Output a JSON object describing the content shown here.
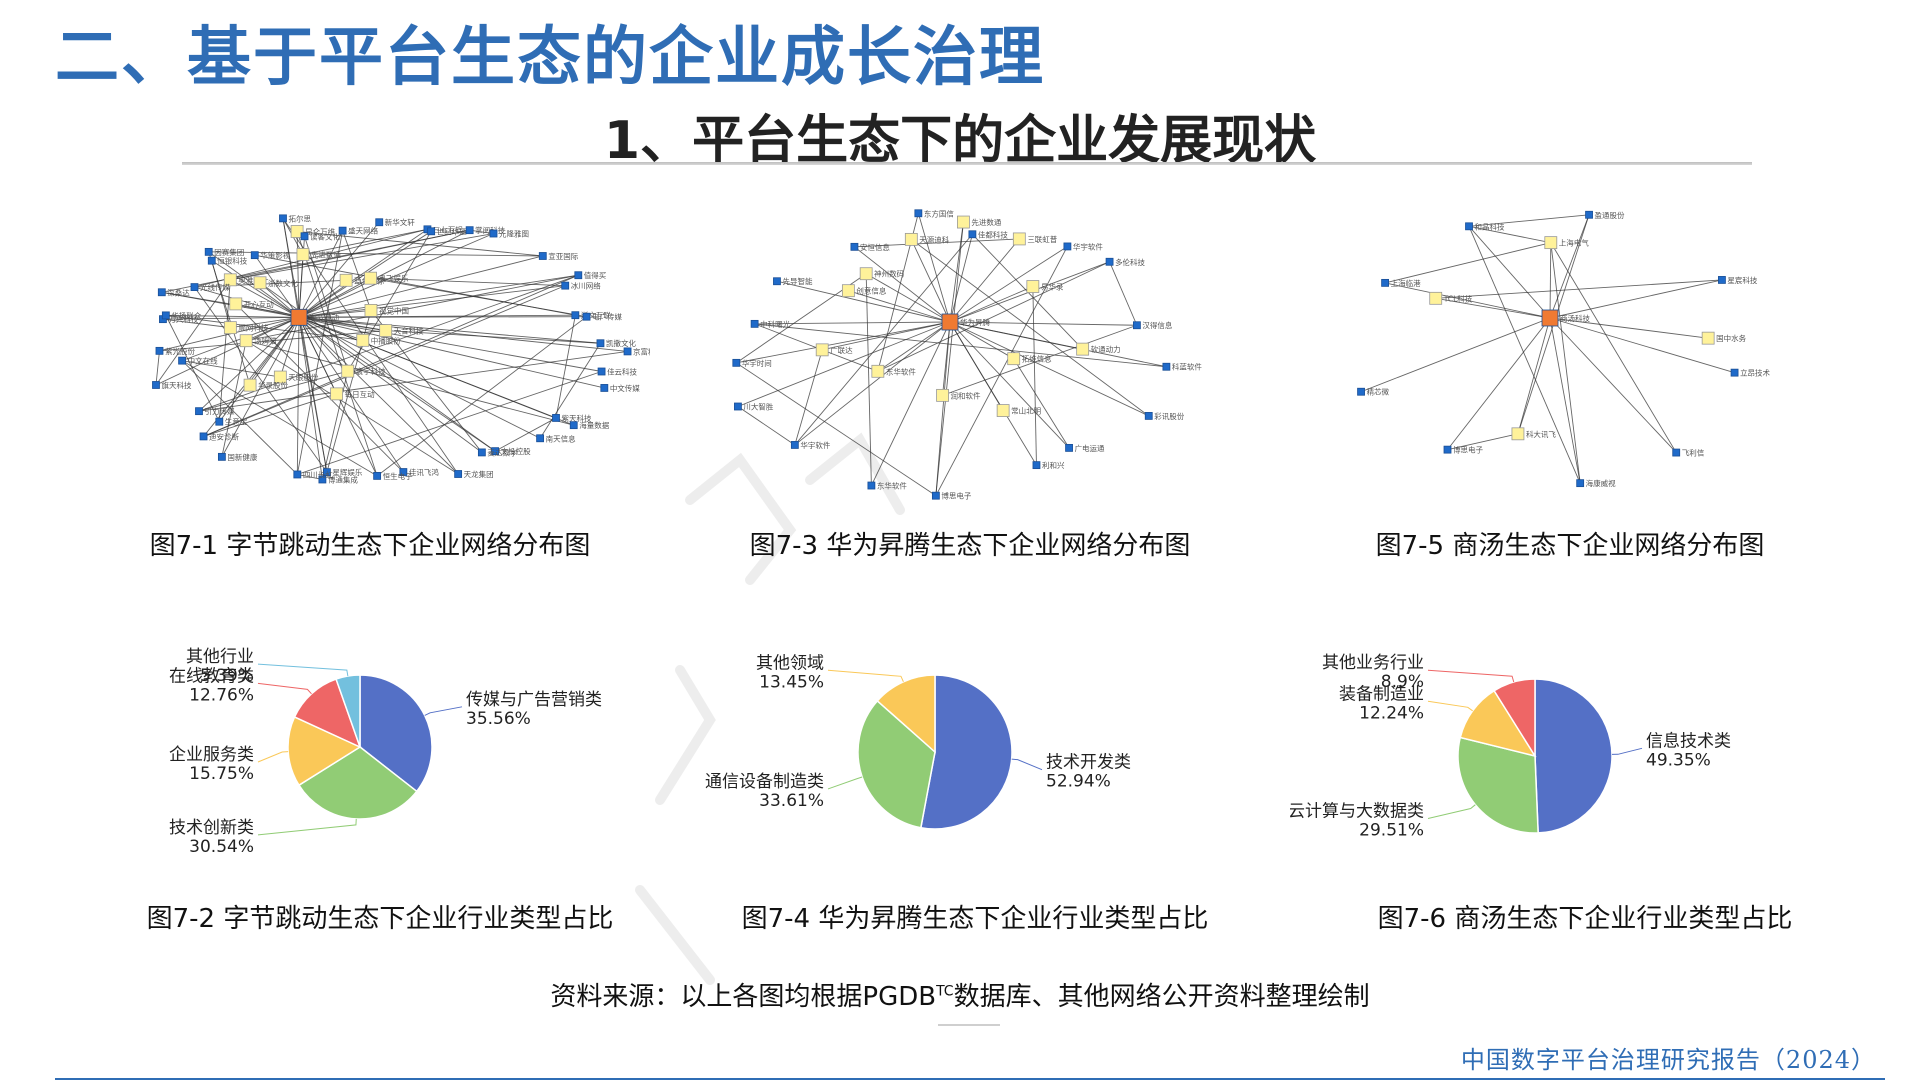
{
  "header": {
    "title": "二、基于平台生态的企业成长治理",
    "subtitle": "1、平台生态下的企业发展现状"
  },
  "colors": {
    "title_blue": "#2f6db5",
    "hub": "#f07a32",
    "core": "#fff29a",
    "leaf": "#1f6ac9",
    "slice_blue": "#5470c6",
    "slice_green": "#91cc75",
    "slice_yellow": "#fac858",
    "slice_red": "#ee6666",
    "slice_cyan": "#73c0de"
  },
  "captions": {
    "fig1": "图7-1 字节跳动生态下企业网络分布图",
    "fig2": "图7-2 字节跳动生态下企业行业类型占比",
    "fig3": "图7-3 华为昇腾生态下企业网络分布图",
    "fig4": "图7-4 华为昇腾生态下企业行业类型占比",
    "fig5": "图7-5 商汤生态下企业网络分布图",
    "fig6": "图7-6 商汤生态下企业行业类型占比"
  },
  "source": {
    "before": "资料来源：以上各图均根据PGDB",
    "sup": "TC",
    "after": "数据库、其他网络公开资料整理绘制"
  },
  "footer": "中国数字平台治理研究报告（2024）",
  "networks": [
    {
      "id": "bytedance",
      "hub": "字节跳动",
      "core": [
        "天音科技",
        "中播股份",
        "寰宇科技",
        "每日互动",
        "天眼股份",
        "华录股份",
        "汤姆猫",
        "顺网科技",
        "开心互动",
        "奥雅设计",
        "浙数文化",
        "昆仑万维",
        "先进数通",
        "蓝色光标",
        "奥飞娱乐",
        "视觉中国"
      ],
      "leaves": [
        "京富科技",
        "佳云科技",
        "中文传媒",
        "紫天科技",
        "海量数据",
        "南天信息",
        "文投控股",
        "麦达数字",
        "天龙集团",
        "佳讯飞鸿",
        "恒生电子",
        "星辉娱乐",
        "博通集成",
        "四川长虹",
        "国新健康",
        "迪安诊断",
        "生意宝",
        "引力传媒",
        "旗天科技",
        "中文在线",
        "紫光股份",
        "万兴科技",
        "华扬联众",
        "深桑达",
        "光线传媒",
        "因赛集团",
        "恒银科技",
        "华策影视",
        "拓尔思",
        "读客文化",
        "盛天网络",
        "新华文轩",
        "三七互娱",
        "世纪华通",
        "掌阅科技",
        "元隆雅图",
        "宣亚国际",
        "值得买",
        "冰川网络",
        "浙文互联",
        "电广传媒",
        "凯撒文化"
      ]
    },
    {
      "id": "huawei",
      "hub": "华为昇腾",
      "core": [
        "软通动力",
        "拓维信息",
        "常山北明",
        "润和软件",
        "东华软件",
        "广联达",
        "创意信息",
        "神州数码",
        "天源迪科",
        "先进数通",
        "三联虹普",
        "易华录"
      ],
      "leaves": [
        "科蓝软件",
        "彩讯股份",
        "广电运通",
        "利和兴",
        "博思电子",
        "东华软件",
        "华宇软件",
        "川大智胜",
        "华宇时间",
        "中科曙光",
        "先导智能",
        "安恒信息",
        "东方国信",
        "佳都科技",
        "华宇软件",
        "多伦科技",
        "汉得信息"
      ]
    },
    {
      "id": "sensetime",
      "hub": "商汤科技",
      "core": [
        "国中水务",
        "科大讯飞",
        "TCL科技",
        "上海电气"
      ],
      "leaves": [
        "立昂技术",
        "飞利信",
        "海康威视",
        "博思电子",
        "精芯微",
        "上海临港",
        "和晶科技",
        "盈通股份",
        "星宸科技"
      ]
    }
  ],
  "chart_data": [
    {
      "type": "pie",
      "title": "图7-2 字节跳动生态下企业行业类型占比",
      "slices": [
        {
          "label": "传媒与广告营销类",
          "value": 35.56,
          "text": "35.56%",
          "color": "#5470c6"
        },
        {
          "label": "技术创新类",
          "value": 30.54,
          "text": "30.54%",
          "color": "#91cc75"
        },
        {
          "label": "企业服务类",
          "value": 15.75,
          "text": "15.75%",
          "color": "#fac858"
        },
        {
          "label": "在线教育类",
          "value": 12.76,
          "text": "12.76%",
          "color": "#ee6666"
        },
        {
          "label": "其他行业",
          "value": 5.39,
          "text": "5.39%",
          "color": "#73c0de"
        }
      ]
    },
    {
      "type": "pie",
      "title": "图7-4 华为昇腾生态下企业行业类型占比",
      "slices": [
        {
          "label": "技术开发类",
          "value": 52.94,
          "text": "52.94%",
          "color": "#5470c6"
        },
        {
          "label": "通信设备制造类",
          "value": 33.61,
          "text": "33.61%",
          "color": "#91cc75"
        },
        {
          "label": "其他领域",
          "value": 13.45,
          "text": "13.45%",
          "color": "#fac858"
        }
      ]
    },
    {
      "type": "pie",
      "title": "图7-6 商汤生态下企业行业类型占比",
      "slices": [
        {
          "label": "信息技术类",
          "value": 49.35,
          "text": "49.35%",
          "color": "#5470c6"
        },
        {
          "label": "云计算与大数据类",
          "value": 29.51,
          "text": "29.51%",
          "color": "#91cc75"
        },
        {
          "label": "装备制造业",
          "value": 12.24,
          "text": "12.24%",
          "color": "#fac858"
        },
        {
          "label": "其他业务行业",
          "value": 8.9,
          "text": "8.9%",
          "color": "#ee6666"
        }
      ]
    }
  ]
}
